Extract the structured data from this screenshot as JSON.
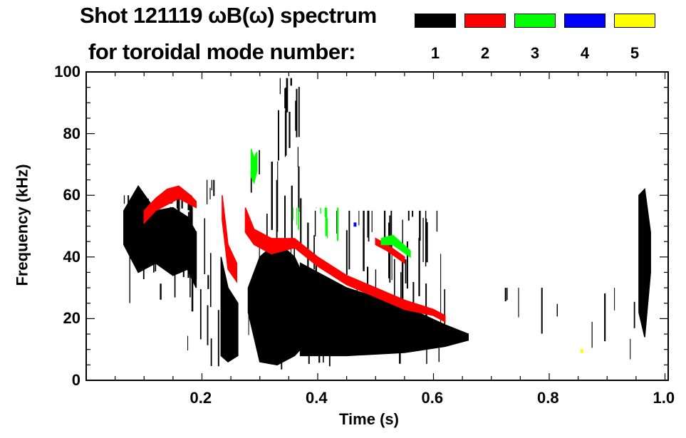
{
  "chart_data": {
    "type": "heatmap",
    "title": "Shot 121119 ωB(ω) spectrum",
    "subtitle": "for toroidal mode number:",
    "xlabel": "Time (s)",
    "ylabel": "Frequency (kHz)",
    "xlim": [
      0.0,
      1.005
    ],
    "ylim": [
      0,
      100
    ],
    "xticks": [
      0.2,
      0.4,
      0.6,
      0.8,
      1.0
    ],
    "xtick_labels": [
      "0.2",
      "0.4",
      "0.6",
      "0.8",
      "1.0"
    ],
    "yticks": [
      0,
      20,
      40,
      60,
      80,
      100
    ],
    "ytick_labels": [
      "0",
      "20",
      "40",
      "60",
      "80",
      "100"
    ],
    "legend": {
      "placement": "top-right",
      "entries": [
        {
          "mode": "1",
          "color": "#000000"
        },
        {
          "mode": "2",
          "color": "#ff0000"
        },
        {
          "mode": "3",
          "color": "#00ff00"
        },
        {
          "mode": "4",
          "color": "#0000ff"
        },
        {
          "mode": "5",
          "color": "#ffff00"
        }
      ]
    },
    "features": [
      {
        "mode": 1,
        "t": [
          0.065,
          0.09,
          0.12,
          0.15,
          0.175,
          0.19
        ],
        "f_lo": [
          44,
          35,
          38,
          34,
          36,
          30
        ],
        "f_hi": [
          55,
          63,
          55,
          56,
          53,
          48
        ]
      },
      {
        "mode": 1,
        "t": [
          0.233,
          0.245,
          0.262
        ],
        "f_lo": [
          8,
          6,
          8
        ],
        "f_hi": [
          40,
          30,
          25
        ]
      },
      {
        "mode": 1,
        "t": [
          0.28,
          0.3,
          0.33,
          0.36,
          0.37
        ],
        "f_lo": [
          22,
          6,
          5,
          8,
          10
        ],
        "f_hi": [
          30,
          40,
          45,
          40,
          36
        ]
      },
      {
        "mode": 1,
        "t": [
          0.37,
          0.45,
          0.55,
          0.62,
          0.66
        ],
        "f_lo": [
          8,
          8,
          9,
          11,
          13
        ],
        "f_hi": [
          38,
          30,
          24,
          18,
          15
        ]
      },
      {
        "mode": 1,
        "t": [
          0.955,
          0.965,
          0.975
        ],
        "f_lo": [
          22,
          14,
          35
        ],
        "f_hi": [
          60,
          62,
          48
        ]
      },
      {
        "mode": 2,
        "t": [
          0.1,
          0.12,
          0.14,
          0.16,
          0.18,
          0.19
        ],
        "f_lo": [
          51,
          55,
          57,
          59,
          57,
          56
        ],
        "f_hi": [
          55,
          59,
          62,
          63,
          60,
          58
        ]
      },
      {
        "mode": 2,
        "t": [
          0.235,
          0.245,
          0.26
        ],
        "f_lo": [
          52,
          36,
          32
        ],
        "f_hi": [
          60,
          44,
          38
        ]
      },
      {
        "mode": 2,
        "t": [
          0.275,
          0.29,
          0.32,
          0.36,
          0.4,
          0.45,
          0.5,
          0.55,
          0.6,
          0.62
        ],
        "f_lo": [
          48,
          44,
          41,
          43,
          37,
          31,
          27,
          23,
          21,
          19
        ],
        "f_hi": [
          56,
          49,
          46,
          46,
          40,
          34,
          30,
          26,
          23,
          21
        ]
      },
      {
        "mode": 2,
        "t": [
          0.5,
          0.52,
          0.55
        ],
        "f_lo": [
          44,
          42,
          38
        ],
        "f_hi": [
          46,
          44,
          40
        ]
      },
      {
        "mode": 3,
        "t": [
          0.285,
          0.29,
          0.295
        ],
        "f_lo": [
          66,
          64,
          68
        ],
        "f_hi": [
          75,
          72,
          74
        ]
      },
      {
        "mode": 3,
        "t": [
          0.51,
          0.53,
          0.56
        ],
        "f_lo": [
          44,
          44,
          40
        ],
        "f_hi": [
          46,
          47,
          42
        ]
      },
      {
        "mode": 4,
        "t": [
          0.463,
          0.466
        ],
        "f_lo": [
          50,
          50
        ],
        "f_hi": [
          51,
          51
        ]
      },
      {
        "mode": 5,
        "t": [
          0.855,
          0.858
        ],
        "f_lo": [
          9,
          9
        ],
        "f_hi": [
          10,
          10
        ]
      }
    ],
    "streak_regions": [
      {
        "mode": 1,
        "t": [
          0.065,
          0.19
        ],
        "f": [
          25,
          60
        ],
        "count": 40
      },
      {
        "mode": 1,
        "t": [
          0.17,
          0.23
        ],
        "f": [
          3,
          65
        ],
        "count": 14
      },
      {
        "mode": 1,
        "t": [
          0.28,
          0.37
        ],
        "f": [
          2,
          98
        ],
        "count": 40
      },
      {
        "mode": 1,
        "t": [
          0.37,
          0.62
        ],
        "f": [
          3,
          55
        ],
        "count": 60
      },
      {
        "mode": 1,
        "t": [
          0.72,
          0.95
        ],
        "f": [
          5,
          30
        ],
        "count": 10
      },
      {
        "mode": 3,
        "t": [
          0.35,
          0.45
        ],
        "f": [
          45,
          56
        ],
        "count": 10
      }
    ]
  }
}
